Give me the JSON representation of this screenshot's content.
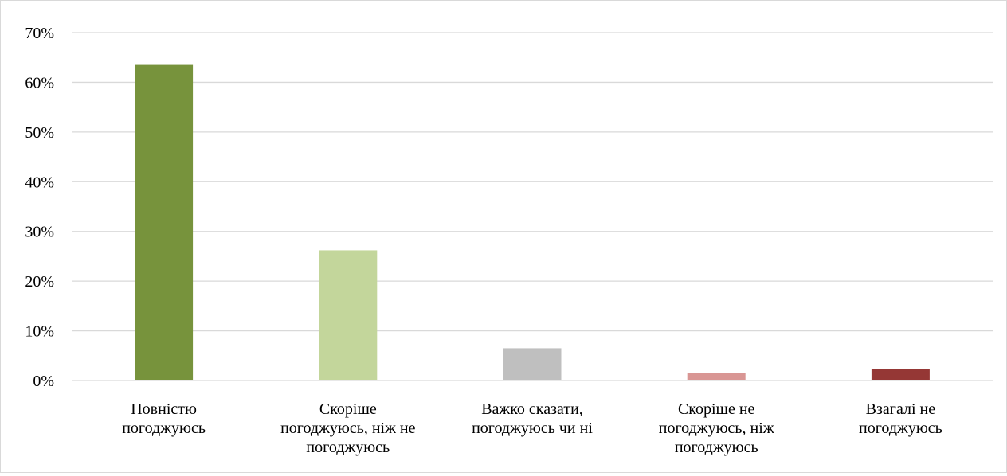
{
  "chart_data": {
    "type": "bar",
    "categories": [
      [
        "Повністю",
        "погоджуюсь"
      ],
      [
        "Скоріше",
        "погоджуюсь, ніж не",
        "погоджуюсь"
      ],
      [
        "Важко сказати,",
        "погоджуюсь чи ні"
      ],
      [
        "Скоріше не",
        "погоджуюсь, ніж",
        "погоджуюсь"
      ],
      [
        "Взагалі не",
        "погоджуюсь"
      ]
    ],
    "values": [
      63.5,
      26.2,
      6.5,
      1.6,
      2.4
    ],
    "colors": [
      "#77933c",
      "#c3d69b",
      "#bfbfbf",
      "#d99694",
      "#953735"
    ],
    "ylim": [
      0,
      70
    ],
    "yticks": [
      0,
      10,
      20,
      30,
      40,
      50,
      60,
      70
    ],
    "ytick_labels": [
      "0%",
      "10%",
      "20%",
      "30%",
      "40%",
      "50%",
      "60%",
      "70%"
    ],
    "grid": true,
    "title": "",
    "xlabel": "",
    "ylabel": ""
  }
}
